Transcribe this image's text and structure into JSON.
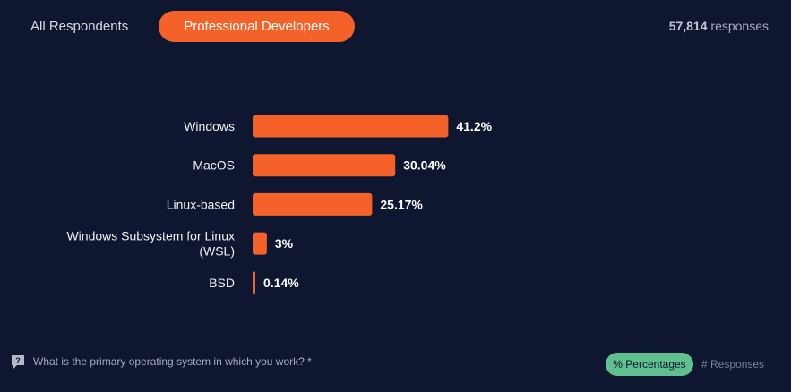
{
  "tabs": {
    "all_label": "All Respondents",
    "pro_label": "Professional Developers",
    "active": "Professional Developers"
  },
  "responses": {
    "count": "57,814",
    "suffix": "responses"
  },
  "chart_data": {
    "type": "bar",
    "orientation": "horizontal",
    "categories": [
      [
        "Windows"
      ],
      [
        "MacOS"
      ],
      [
        "Linux-based"
      ],
      [
        "Windows Subsystem for Linux",
        "(WSL)"
      ],
      [
        "BSD"
      ]
    ],
    "values": [
      41.2,
      30.04,
      25.17,
      3,
      0.14
    ],
    "value_labels": [
      "41.2%",
      "30.04%",
      "25.17%",
      "3%",
      "0.14%"
    ],
    "bar_color": "#f4622a",
    "grid": false
  },
  "footer": {
    "question": "What is the primary operating system in which you work? *",
    "toggle_percentages": "% Percentages",
    "toggle_responses": "# Responses",
    "toggle_active": "% Percentages"
  },
  "colors": {
    "background": "#0e1630",
    "accent": "#f4622a",
    "toggle_active": "#5fbf8e"
  }
}
